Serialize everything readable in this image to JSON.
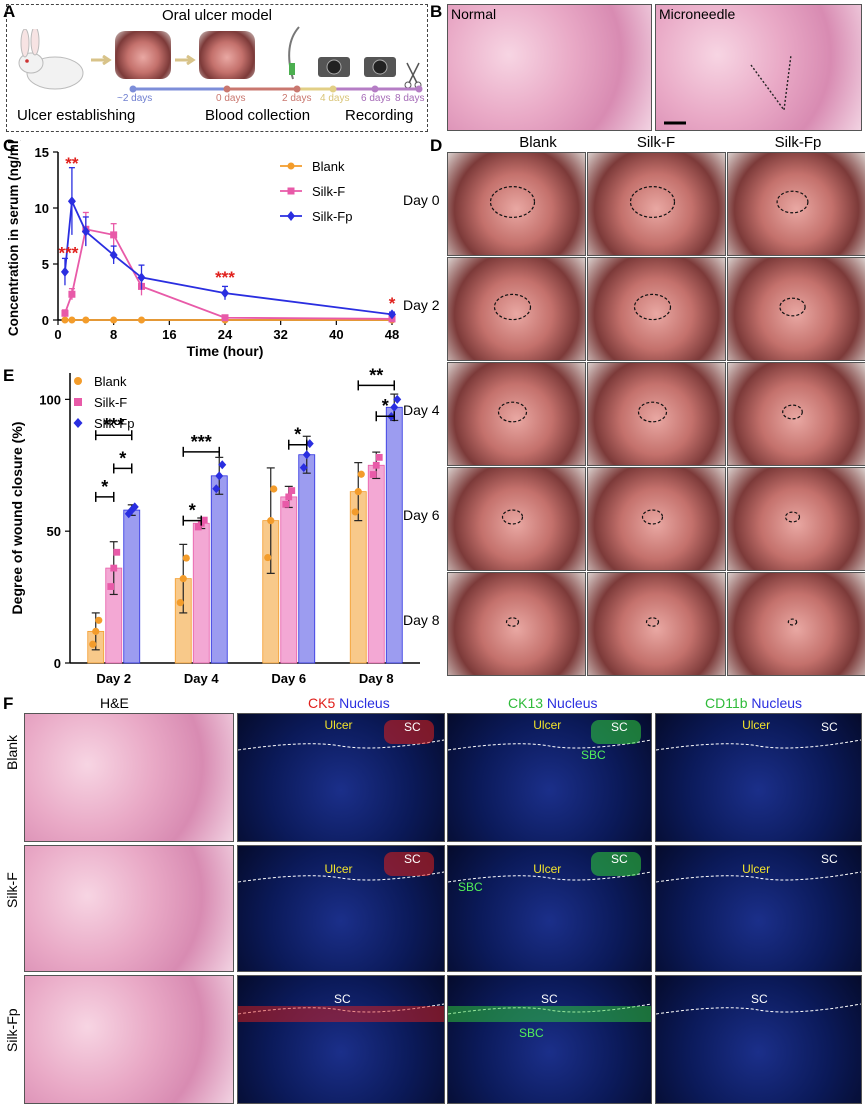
{
  "panels": {
    "A": {
      "letter": "A",
      "title": "Oral ulcer model",
      "timeline": [
        "~2 days",
        "0 days",
        "2 days",
        "4 days",
        "6 days",
        "8 days"
      ],
      "stages": [
        "Ulcer establishing",
        "Blood collection",
        "Recording"
      ]
    },
    "B": {
      "letter": "B",
      "labels": [
        "Normal",
        "Microneedle"
      ]
    },
    "C": {
      "letter": "C"
    },
    "D": {
      "letter": "D",
      "columns": [
        "Blank",
        "Silk-F",
        "Silk-Fp"
      ],
      "rows": [
        "Day 0",
        "Day 2",
        "Day 4",
        "Day 6",
        "Day 8"
      ]
    },
    "E": {
      "letter": "E"
    },
    "F": {
      "letter": "F",
      "col_he": "H&E",
      "col_ck5": [
        "CK5",
        " Nucleus"
      ],
      "col_ck13": [
        "CK13",
        " Nucleus"
      ],
      "col_cd11b": [
        "CD11b",
        " Nucleus"
      ],
      "rows": [
        "Blank",
        "Silk-F",
        "Silk-Fp"
      ],
      "annotations": {
        "ulcer": "Ulcer",
        "sc": "SC",
        "sbc": "SBC"
      }
    }
  },
  "colors": {
    "blank": "#f39c2b",
    "silkf": "#e85aa8",
    "silkfp": "#2a2ee0",
    "star": "#e0201c",
    "ck5": "#e0201c",
    "green": "#2fd13a",
    "nucleus": "#2a2ee0"
  },
  "chart_data": [
    {
      "type": "line",
      "panel": "C",
      "xlabel": "Time (hour)",
      "ylabel": "Concentration in serum (ng/ml)",
      "xlim": [
        0,
        48
      ],
      "ylim": [
        0,
        15
      ],
      "xticks": [
        0,
        8,
        16,
        24,
        32,
        40,
        48
      ],
      "yticks": [
        0,
        5,
        10,
        15
      ],
      "legend_position": "top-right",
      "series": [
        {
          "name": "Blank",
          "x": [
            1,
            2,
            4,
            8,
            12,
            24,
            48
          ],
          "y": [
            0,
            0,
            0,
            0,
            0,
            0,
            0
          ],
          "err": [
            0,
            0,
            0,
            0,
            0,
            0,
            0
          ]
        },
        {
          "name": "Silk-F",
          "x": [
            1,
            2,
            4,
            8,
            12,
            24,
            48
          ],
          "y": [
            0.6,
            2.3,
            8.1,
            7.6,
            3.0,
            0.2,
            0.1
          ],
          "err": [
            0.3,
            0.5,
            1.5,
            1.0,
            0.8,
            0.1,
            0.1
          ]
        },
        {
          "name": "Silk-Fp",
          "x": [
            1,
            2,
            4,
            8,
            12,
            24,
            48
          ],
          "y": [
            4.3,
            10.6,
            7.9,
            5.8,
            3.8,
            2.4,
            0.5
          ],
          "err": [
            1.2,
            3.0,
            1.3,
            0.8,
            1.1,
            0.6,
            0.2
          ]
        }
      ],
      "annotations": [
        {
          "x": 2,
          "y": 13.5,
          "text": "**"
        },
        {
          "x": 1.5,
          "y": 5.5,
          "text": "***"
        },
        {
          "x": 24,
          "y": 3.3,
          "text": "***"
        },
        {
          "x": 48,
          "y": 1.0,
          "text": "*"
        }
      ]
    },
    {
      "type": "bar",
      "panel": "E",
      "ylabel": "Degree of wound closure (%)",
      "categories": [
        "Day 2",
        "Day 4",
        "Day 6",
        "Day 8"
      ],
      "ylim": [
        0,
        110
      ],
      "yticks": [
        0,
        50,
        100
      ],
      "legend_position": "top-left",
      "series": [
        {
          "name": "Blank",
          "values": [
            12,
            32,
            54,
            65
          ],
          "err": [
            7,
            13,
            20,
            11
          ]
        },
        {
          "name": "Silk-F",
          "values": [
            36,
            53,
            63,
            75
          ],
          "err": [
            10,
            2,
            4,
            5
          ]
        },
        {
          "name": "Silk-Fp",
          "values": [
            58,
            71,
            79,
            97
          ],
          "err": [
            2,
            7,
            7,
            5
          ]
        }
      ],
      "significance": [
        {
          "cat": 0,
          "from": 0,
          "to": 1,
          "y": 70,
          "text": "*"
        },
        {
          "cat": 0,
          "from": 1,
          "to": 2,
          "y": 82,
          "text": "*"
        },
        {
          "cat": 0,
          "from": 0,
          "to": 2,
          "y": 96,
          "text": "***"
        },
        {
          "cat": 1,
          "from": 0,
          "to": 1,
          "y": 60,
          "text": "*"
        },
        {
          "cat": 1,
          "from": 0,
          "to": 2,
          "y": 89,
          "text": "***"
        },
        {
          "cat": 2,
          "from": 1,
          "to": 2,
          "y": 92,
          "text": "*"
        },
        {
          "cat": 3,
          "from": 1,
          "to": 2,
          "y": 104,
          "text": "*"
        },
        {
          "cat": 3,
          "from": 0,
          "to": 2,
          "y": 117,
          "text": "**"
        }
      ]
    }
  ]
}
